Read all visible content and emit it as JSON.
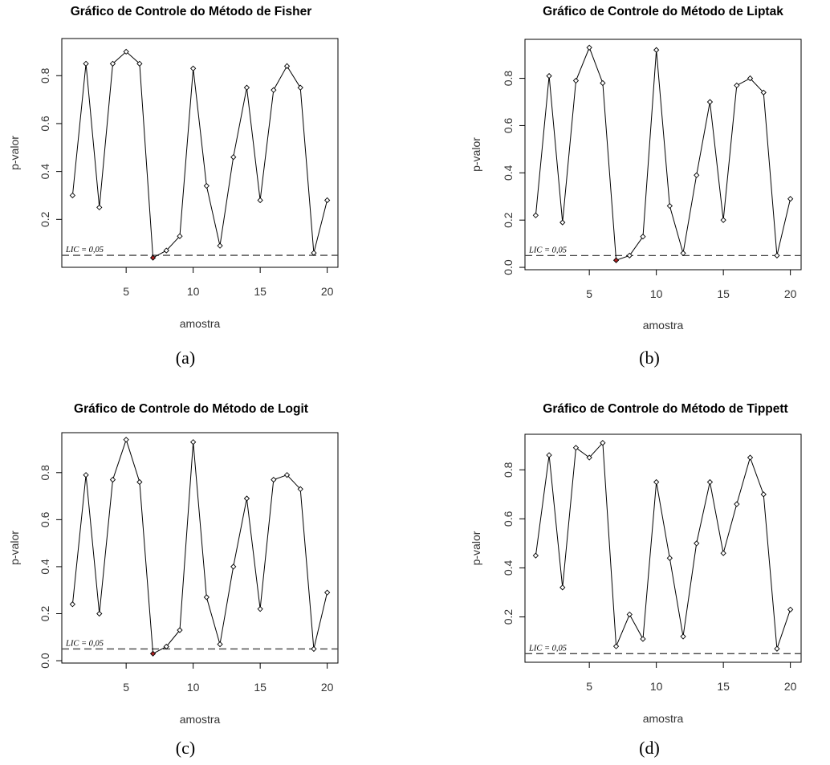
{
  "chart_data": [
    {
      "type": "line",
      "title": "Gráfico de Controle do Método de Fisher",
      "caption": "(a)",
      "xlabel": "amostra",
      "ylabel": "p-valor",
      "xticks": [
        "5",
        "10",
        "15",
        "20"
      ],
      "yticks": [
        "0.2",
        "0.4",
        "0.6",
        "0.8"
      ],
      "x": [
        1,
        2,
        3,
        4,
        5,
        6,
        7,
        8,
        9,
        10,
        11,
        12,
        13,
        14,
        15,
        16,
        17,
        18,
        19,
        20
      ],
      "values": [
        0.3,
        0.85,
        0.25,
        0.85,
        0.9,
        0.85,
        0.04,
        0.07,
        0.13,
        0.83,
        0.34,
        0.09,
        0.46,
        0.75,
        0.28,
        0.74,
        0.84,
        0.75,
        0.06,
        0.28
      ],
      "highlight": [
        {
          "x": 7,
          "color": "#b22222"
        }
      ],
      "lic_value": 0.05,
      "lic_label": "LIC = 0,05",
      "xlim": [
        0.2,
        20.8
      ],
      "ylim": [
        0.0,
        0.955
      ]
    },
    {
      "type": "line",
      "title": "Gráfico de Controle do Método de Liptak",
      "caption": "(b)",
      "xlabel": "amostra",
      "ylabel": "p-valor",
      "xticks": [
        "5",
        "10",
        "15",
        "20"
      ],
      "yticks": [
        "0.0",
        "0.2",
        "0.4",
        "0.6",
        "0.8"
      ],
      "x": [
        1,
        2,
        3,
        4,
        5,
        6,
        7,
        8,
        9,
        10,
        11,
        12,
        13,
        14,
        15,
        16,
        17,
        18,
        19,
        20
      ],
      "values": [
        0.22,
        0.81,
        0.19,
        0.79,
        0.93,
        0.78,
        0.03,
        0.05,
        0.13,
        0.92,
        0.26,
        0.06,
        0.39,
        0.7,
        0.2,
        0.77,
        0.8,
        0.74,
        0.05,
        0.29
      ],
      "highlight": [
        {
          "x": 7,
          "color": "#b22222"
        }
      ],
      "lic_value": 0.05,
      "lic_label": "LIC = 0,05",
      "xlim": [
        0.2,
        20.8
      ],
      "ylim": [
        -0.01,
        0.965
      ]
    },
    {
      "type": "line",
      "title": "Gráfico de Controle do Método de Logit",
      "caption": "(c)",
      "xlabel": "amostra",
      "ylabel": "p-valor",
      "xticks": [
        "5",
        "10",
        "15",
        "20"
      ],
      "yticks": [
        "0.0",
        "0.2",
        "0.4",
        "0.6",
        "0.8"
      ],
      "x": [
        1,
        2,
        3,
        4,
        5,
        6,
        7,
        8,
        9,
        10,
        11,
        12,
        13,
        14,
        15,
        16,
        17,
        18,
        19,
        20
      ],
      "values": [
        0.24,
        0.79,
        0.2,
        0.77,
        0.94,
        0.76,
        0.03,
        0.06,
        0.13,
        0.93,
        0.27,
        0.07,
        0.4,
        0.69,
        0.22,
        0.77,
        0.79,
        0.73,
        0.05,
        0.29
      ],
      "highlight": [
        {
          "x": 7,
          "color": "#b22222"
        }
      ],
      "lic_value": 0.05,
      "lic_label": "LIC = 0,05",
      "xlim": [
        0.2,
        20.8
      ],
      "ylim": [
        -0.01,
        0.97
      ]
    },
    {
      "type": "line",
      "title": "Gráfico de Controle do Método de Tippett",
      "caption": "(d)",
      "xlabel": "amostra",
      "ylabel": "p-valor",
      "xticks": [
        "5",
        "10",
        "15",
        "20"
      ],
      "yticks": [
        "0.2",
        "0.4",
        "0.6",
        "0.8"
      ],
      "x": [
        1,
        2,
        3,
        4,
        5,
        6,
        7,
        8,
        9,
        10,
        11,
        12,
        13,
        14,
        15,
        16,
        17,
        18,
        19,
        20
      ],
      "values": [
        0.45,
        0.86,
        0.32,
        0.89,
        0.85,
        0.91,
        0.08,
        0.21,
        0.11,
        0.75,
        0.44,
        0.12,
        0.5,
        0.75,
        0.46,
        0.66,
        0.85,
        0.7,
        0.07,
        0.23
      ],
      "highlight": [],
      "lic_value": 0.05,
      "lic_label": "LIC = 0,05",
      "xlim": [
        0.2,
        20.8
      ],
      "ylim": [
        0.015,
        0.945
      ]
    }
  ]
}
